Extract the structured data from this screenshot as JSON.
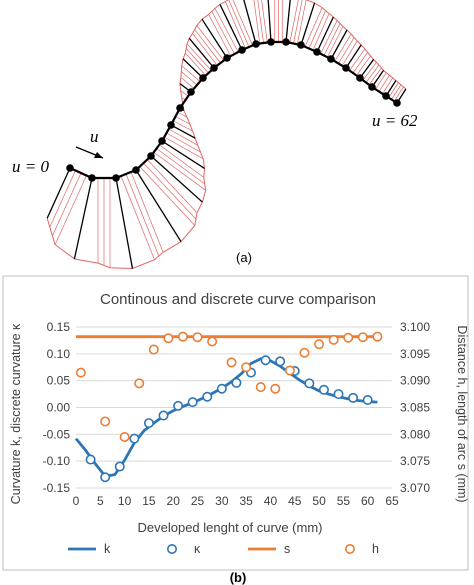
{
  "figure": {
    "panel_a_caption": "(a)",
    "panel_b_caption": "(b)",
    "curve_labels": {
      "start": "u = 0",
      "end": "u = 62",
      "direction": "u"
    },
    "colors": {
      "curve": "#000000",
      "normal": "#000000",
      "hatch": "#e06666",
      "hatch_outline": "#e06666"
    }
  },
  "chart_data": {
    "type": "line",
    "title": "Continous and discrete curve comparison",
    "xlabel": "Developed lenght of curve (mm)",
    "ylabel_left": "Curvature k, discrete curvature κ",
    "ylabel_right": "Distance h, length of arc s (mm)",
    "x_ticks": [
      "0",
      "5",
      "10",
      "15",
      "20",
      "25",
      "30",
      "35",
      "40",
      "45",
      "50",
      "55",
      "60",
      "65"
    ],
    "y_left_ticks": [
      "-0.15",
      "-0.10",
      "-0.05",
      "0.00",
      "0.05",
      "0.10",
      "0.15"
    ],
    "y_right_ticks": [
      "3.070",
      "3.075",
      "3.080",
      "3.085",
      "3.090",
      "3.095",
      "3.100"
    ],
    "xlim": [
      0,
      65
    ],
    "ylim_left": [
      -0.15,
      0.15
    ],
    "ylim_right": [
      3.07,
      3.1
    ],
    "grid": "horizontal",
    "legend": "bottom",
    "series": [
      {
        "name": "k",
        "axis": "left",
        "kind": "line",
        "color": "#2e75b6",
        "x": [
          0,
          2,
          4,
          6,
          8,
          10,
          12,
          14,
          16,
          18,
          20,
          22,
          24,
          26,
          28,
          30,
          32,
          34,
          36,
          38,
          40,
          42,
          44,
          46,
          48,
          50,
          52,
          54,
          56,
          58,
          60,
          62
        ],
        "y": [
          -0.058,
          -0.08,
          -0.105,
          -0.128,
          -0.125,
          -0.098,
          -0.066,
          -0.043,
          -0.029,
          -0.016,
          -0.006,
          0.002,
          0.009,
          0.017,
          0.026,
          0.036,
          0.048,
          0.063,
          0.082,
          0.091,
          0.087,
          0.077,
          0.064,
          0.051,
          0.04,
          0.031,
          0.025,
          0.02,
          0.016,
          0.013,
          0.011,
          0.01
        ]
      },
      {
        "name": "κ",
        "axis": "left",
        "kind": "marker",
        "color": "#2e75b6",
        "x": [
          3,
          6,
          9,
          12,
          15,
          18,
          21,
          24,
          27,
          30,
          33,
          36,
          39,
          42,
          45,
          48,
          51,
          54,
          57,
          60
        ],
        "y": [
          -0.097,
          -0.13,
          -0.11,
          -0.058,
          -0.029,
          -0.015,
          0.003,
          0.01,
          0.02,
          0.035,
          0.046,
          0.065,
          0.088,
          0.086,
          0.068,
          0.045,
          0.033,
          0.025,
          0.018,
          0.014
        ]
      },
      {
        "name": "s",
        "axis": "right",
        "kind": "line",
        "color": "#ed7d31",
        "x": [
          0,
          62
        ],
        "y": [
          3.0982,
          3.0982
        ]
      },
      {
        "name": "h",
        "axis": "right",
        "kind": "marker",
        "color": "#ed7d31",
        "x": [
          1,
          6,
          10,
          13,
          16,
          19,
          22,
          25,
          28,
          32,
          35,
          38,
          41,
          44,
          47,
          50,
          53,
          56,
          59,
          62
        ],
        "y": [
          3.0915,
          3.0824,
          3.0795,
          3.0895,
          3.0958,
          3.0979,
          3.0982,
          3.0981,
          3.0973,
          3.0934,
          3.0925,
          3.0888,
          3.0885,
          3.0919,
          3.0952,
          3.0968,
          3.0976,
          3.098,
          3.0981,
          3.0982
        ]
      }
    ]
  }
}
